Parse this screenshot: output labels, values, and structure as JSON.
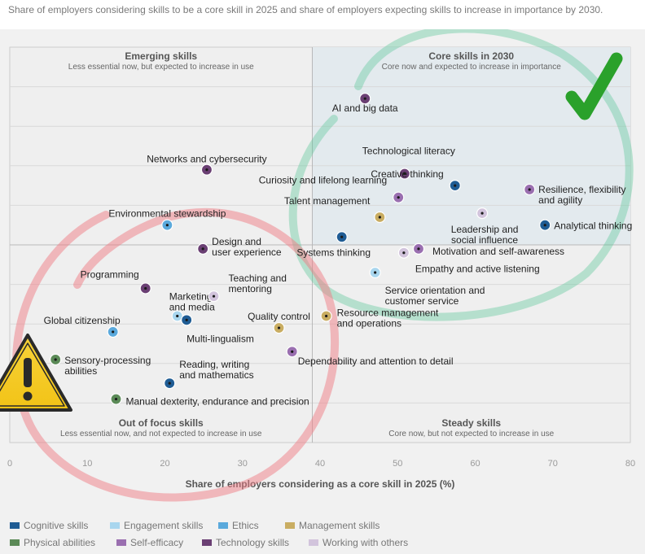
{
  "subtitle": "Share of employers considering skills to be a core skill in 2025 and share of employers expecting skills to increase in importance by 2030.",
  "chart_data": {
    "type": "scatter",
    "xlabel": "Share of employers considering as a core skill in 2025 (%)",
    "xlim": [
      0,
      80
    ],
    "xticks": [
      0,
      10,
      20,
      30,
      40,
      50,
      60,
      70,
      80
    ],
    "quadrant_split_x": 39,
    "quadrants": [
      {
        "id": "top-left",
        "title": "Emerging skills",
        "subtitle": "Less essential now, but expected to increase in use"
      },
      {
        "id": "top-right",
        "title": "Core skills in 2030",
        "subtitle": "Core now and expected to increase in importance"
      },
      {
        "id": "bottom-left",
        "title": "Out of focus skills",
        "subtitle": "Less essential now, and not expected to increase in use"
      },
      {
        "id": "bottom-right",
        "title": "Steady skills",
        "subtitle": "Core now, but not expected to increase in use"
      }
    ],
    "categories": [
      {
        "id": "cognitive",
        "name": "Cognitive skills",
        "color": "#1f5c94"
      },
      {
        "id": "engagement",
        "name": "Engagement skills",
        "color": "#a9d6ee"
      },
      {
        "id": "ethics",
        "name": "Ethics",
        "color": "#5aa9dc"
      },
      {
        "id": "management",
        "name": "Management skills",
        "color": "#c9ad62"
      },
      {
        "id": "physical",
        "name": "Physical abilities",
        "color": "#5b8a57"
      },
      {
        "id": "selfefficacy",
        "name": "Self-efficacy",
        "color": "#9a6fb0"
      },
      {
        "id": "technology",
        "name": "Technology skills",
        "color": "#6a3f73"
      },
      {
        "id": "others",
        "name": "Working with others",
        "color": "#d2c4dc"
      }
    ],
    "points": [
      {
        "label": [
          "AI and big data"
        ],
        "x": 45.8,
        "y": 87,
        "cat": "technology"
      },
      {
        "label": [
          "Technological literacy"
        ],
        "x": 50.9,
        "y": 68,
        "cat": "technology"
      },
      {
        "label": [
          "Creative thinking"
        ],
        "x": 57.4,
        "y": 65,
        "cat": "cognitive"
      },
      {
        "label": [
          "Curiosity and lifelong learning"
        ],
        "x": 50.1,
        "y": 62,
        "cat": "selfefficacy"
      },
      {
        "label": [
          "Resilience, flexibility",
          "and agility"
        ],
        "x": 67,
        "y": 64,
        "cat": "selfefficacy"
      },
      {
        "label": [
          "Talent management"
        ],
        "x": 47.7,
        "y": 57,
        "cat": "management"
      },
      {
        "label": [
          "Leadership and",
          "social influence"
        ],
        "x": 60.9,
        "y": 58,
        "cat": "others"
      },
      {
        "label": [
          "Analytical thinking"
        ],
        "x": 69,
        "y": 55,
        "cat": "cognitive"
      },
      {
        "label": [
          "Networks and cybersecurity"
        ],
        "x": 25.4,
        "y": 69,
        "cat": "technology"
      },
      {
        "label": [
          "Environmental stewardship"
        ],
        "x": 20.3,
        "y": 55,
        "cat": "ethics"
      },
      {
        "label": [
          "Design and",
          "user experience"
        ],
        "x": 24.9,
        "y": 49,
        "cat": "technology"
      },
      {
        "label": [
          "Systems thinking"
        ],
        "x": 42.8,
        "y": 52,
        "cat": "cognitive"
      },
      {
        "label": [
          "Motivation and self-awareness"
        ],
        "x": 52.7,
        "y": 49,
        "cat": "selfefficacy"
      },
      {
        "label": [
          "Empathy and active listening"
        ],
        "x": 50.8,
        "y": 48,
        "cat": "others"
      },
      {
        "label": [
          "Service orientation and",
          "customer service"
        ],
        "x": 47.1,
        "y": 43,
        "cat": "engagement"
      },
      {
        "label": [
          "Programming"
        ],
        "x": 17.5,
        "y": 39,
        "cat": "technology"
      },
      {
        "label": [
          "Marketing",
          "and media"
        ],
        "x": 21.6,
        "y": 32,
        "cat": "engagement"
      },
      {
        "label": [
          "Teaching and",
          "mentoring"
        ],
        "x": 26.3,
        "y": 37,
        "cat": "others"
      },
      {
        "label": [
          "Multi-lingualism"
        ],
        "x": 22.8,
        "y": 31,
        "cat": "cognitive"
      },
      {
        "label": [
          "Global citizenship"
        ],
        "x": 13.3,
        "y": 28,
        "cat": "ethics"
      },
      {
        "label": [
          "Quality control"
        ],
        "x": 34.7,
        "y": 29,
        "cat": "management"
      },
      {
        "label": [
          "Resource management",
          "and operations"
        ],
        "x": 40.8,
        "y": 32,
        "cat": "management"
      },
      {
        "label": [
          "Dependability and attention to detail"
        ],
        "x": 36.4,
        "y": 23,
        "cat": "selfefficacy"
      },
      {
        "label": [
          "Sensory-processing",
          "abilities"
        ],
        "x": 5.9,
        "y": 21,
        "cat": "physical"
      },
      {
        "label": [
          "Reading, writing",
          "and mathematics"
        ],
        "x": 20.6,
        "y": 15,
        "cat": "cognitive"
      },
      {
        "label": [
          "Manual dexterity, endurance and precision"
        ],
        "x": 13.7,
        "y": 11,
        "cat": "physical"
      }
    ]
  }
}
